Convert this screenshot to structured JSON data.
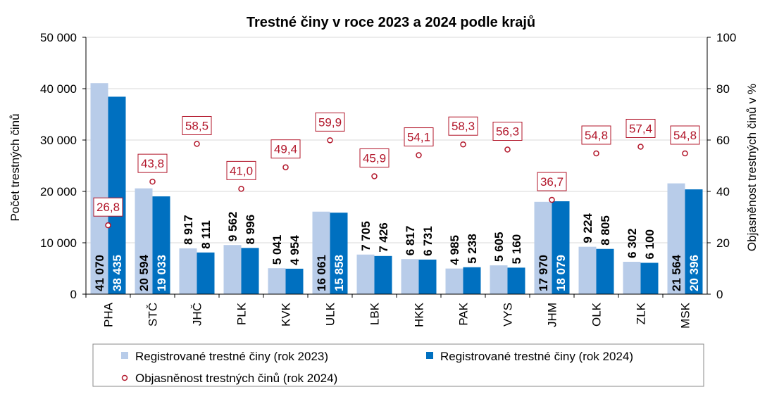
{
  "colors": {
    "series2023": "#b8cce9",
    "series2024": "#0070c0",
    "rate": "#b2162a",
    "grid": "#d9d9d9"
  },
  "chart_data": {
    "type": "bar",
    "title": "Trestné činy v roce 2023 a 2024 podle krajů",
    "ylabel": "Počet trestných činů",
    "y2label": "Objasněnost trestných činů v %",
    "ylim": [
      0,
      50000
    ],
    "y2lim": [
      0,
      100
    ],
    "yticks": [
      "0",
      "10 000",
      "20 000",
      "30 000",
      "40 000",
      "50 000"
    ],
    "y2ticks": [
      "0",
      "20",
      "40",
      "60",
      "80",
      "100"
    ],
    "grid": true,
    "legend_position": "bottom",
    "categories": [
      "PHA",
      "STČ",
      "JHČ",
      "PLK",
      "KVK",
      "ULK",
      "LBK",
      "HKK",
      "PAK",
      "VYS",
      "JHM",
      "OLK",
      "ZLK",
      "MSK"
    ],
    "series": [
      {
        "name": "Registrované trestné činy (rok 2023)",
        "type": "bar",
        "values": [
          41070,
          20594,
          8917,
          9562,
          5041,
          16061,
          7705,
          6817,
          4985,
          5605,
          17970,
          9224,
          6302,
          21564
        ],
        "labels": [
          "41 070",
          "20 594",
          "8 917",
          "9 562",
          "5 041",
          "16 061",
          "7 705",
          "6 817",
          "4 985",
          "5 605",
          "17 970",
          "9 224",
          "6 302",
          "21 564"
        ]
      },
      {
        "name": "Registrované trestné činy (rok 2024)",
        "type": "bar",
        "values": [
          38435,
          19033,
          8111,
          8996,
          4954,
          15858,
          7426,
          6731,
          5238,
          5160,
          18079,
          8805,
          6100,
          20396
        ],
        "labels": [
          "38 435",
          "19 033",
          "8 111",
          "8 996",
          "4 954",
          "15 858",
          "7 426",
          "6 731",
          "5 238",
          "5 160",
          "18 079",
          "8 805",
          "6 100",
          "20 396"
        ]
      },
      {
        "name": "Objasněnost trestných činů (rok 2024)",
        "type": "scatter",
        "axis": "right",
        "values": [
          26.8,
          43.8,
          58.5,
          41.0,
          49.4,
          59.9,
          45.9,
          54.1,
          58.3,
          56.3,
          36.7,
          54.8,
          57.4,
          54.8
        ],
        "labels": [
          "26,8",
          "43,8",
          "58,5",
          "41,0",
          "49,4",
          "59,9",
          "45,9",
          "54,1",
          "58,3",
          "56,3",
          "36,7",
          "54,8",
          "57,4",
          "54,8"
        ]
      }
    ]
  }
}
